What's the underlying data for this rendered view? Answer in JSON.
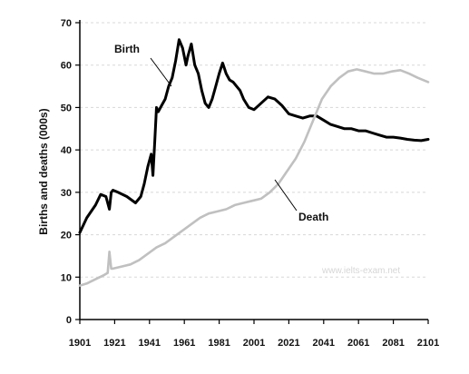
{
  "chart_data": {
    "type": "line",
    "title": "",
    "xlabel": "",
    "ylabel": "Births and deaths (000s)",
    "xlim": [
      1901,
      2101
    ],
    "ylim": [
      0,
      70
    ],
    "x_ticks": [
      1901,
      1921,
      1941,
      1961,
      1981,
      2001,
      2021,
      2041,
      2061,
      2081,
      2101
    ],
    "y_ticks": [
      0,
      10,
      20,
      30,
      40,
      50,
      60,
      70
    ],
    "grid": "horizontal dashed",
    "legend": "none (series labelled on the chart)",
    "watermark": "www.ielts-exam.net",
    "series": [
      {
        "name": "Birth",
        "color": "#000000",
        "x": [
          1901,
          1905,
          1910,
          1913,
          1916,
          1918,
          1919,
          1920,
          1923,
          1928,
          1933,
          1936,
          1938,
          1940,
          1942,
          1943,
          1944,
          1945,
          1946,
          1948,
          1950,
          1952,
          1954,
          1956,
          1958,
          1960,
          1962,
          1963,
          1965,
          1967,
          1969,
          1971,
          1973,
          1975,
          1977,
          1979,
          1981,
          1983,
          1985,
          1987,
          1989,
          1991,
          1993,
          1995,
          1998,
          2001,
          2005,
          2009,
          2013,
          2017,
          2021,
          2025,
          2029,
          2033,
          2037,
          2041,
          2045,
          2049,
          2053,
          2057,
          2061,
          2065,
          2069,
          2073,
          2077,
          2081,
          2085,
          2089,
          2093,
          2097,
          2101
        ],
        "values": [
          20.5,
          24,
          27,
          29.5,
          29,
          26,
          30,
          30.5,
          30,
          29,
          27.5,
          29,
          32,
          36,
          39,
          34,
          42,
          50,
          49,
          50.5,
          52,
          55,
          57,
          61,
          66,
          64,
          60,
          62,
          65,
          60,
          58,
          54,
          51,
          50,
          52,
          55,
          58,
          60.5,
          58,
          56.5,
          56,
          55,
          54,
          52,
          50,
          49.5,
          51,
          52.5,
          52,
          50.5,
          48.5,
          48,
          47.5,
          48,
          48,
          47,
          46,
          45.5,
          45,
          45,
          44.5,
          44.5,
          44,
          43.5,
          43,
          43,
          42.8,
          42.5,
          42.3,
          42.2,
          42.5
        ]
      },
      {
        "name": "Death",
        "color": "#c0c0c0",
        "x": [
          1901,
          1905,
          1910,
          1915,
          1917,
          1918,
          1919,
          1920,
          1925,
          1930,
          1935,
          1940,
          1945,
          1950,
          1955,
          1960,
          1965,
          1970,
          1975,
          1980,
          1985,
          1990,
          1995,
          2000,
          2005,
          2010,
          2015,
          2020,
          2025,
          2030,
          2035,
          2040,
          2045,
          2050,
          2055,
          2060,
          2065,
          2070,
          2075,
          2080,
          2085,
          2090,
          2095,
          2101
        ],
        "values": [
          8,
          8.5,
          9.5,
          10.5,
          11,
          16,
          12,
          12,
          12.5,
          13,
          14,
          15.5,
          17,
          18,
          19.5,
          21,
          22.5,
          24,
          25,
          25.5,
          26,
          27,
          27.5,
          28,
          28.5,
          30,
          32,
          35,
          38,
          42,
          47,
          52,
          55,
          57,
          58.5,
          59,
          58.5,
          58,
          58,
          58.5,
          58.8,
          58,
          57,
          56
        ]
      }
    ]
  }
}
